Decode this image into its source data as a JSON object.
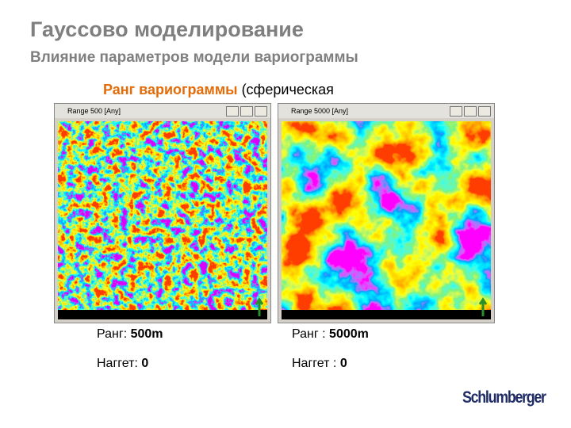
{
  "header": {
    "title": "Гауссово моделирование",
    "subtitle": "Влияние параметров модели вариограммы"
  },
  "heading": {
    "emphasis": "Ранг вариограммы",
    "rest": " (сферическая"
  },
  "panels": [
    {
      "window_title": "Range 500 [Any]",
      "range_label": "Ранг: ",
      "range_value": "500m",
      "nugget_label": "Наггет: ",
      "nugget_value": "0"
    },
    {
      "window_title": "Range 5000 [Any]",
      "range_label": "Ранг : ",
      "range_value": "5000m",
      "nugget_label": "Наггет : ",
      "nugget_value": "0"
    }
  ],
  "logo": "Schlumberger"
}
